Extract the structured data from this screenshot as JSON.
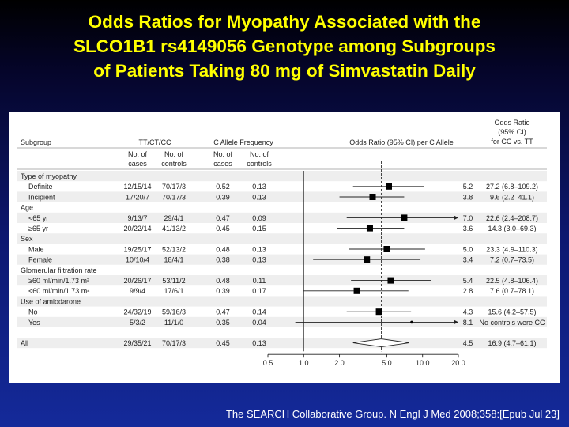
{
  "title": {
    "lines": [
      "Odds Ratios for Myopathy Associated with the",
      "SLCO1B1 rs4149056 Genotype among Subgroups",
      "of Patients Taking 80 mg of Simvastatin Daily"
    ]
  },
  "citation": "The SEARCH Collaborative Group. N Engl J Med 2008;358:[Epub Jul 23]",
  "colors": {
    "title": "#ffff00",
    "background_top": "#000000",
    "background_bottom": "#142a9a",
    "panel": "#ffffff",
    "row_band": "#eeeeee"
  },
  "table": {
    "headers": {
      "subgroup": "Subgroup",
      "ttctcc": "TT/CT/CC",
      "callele": "C Allele Frequency",
      "or_per_c": "Odds Ratio (95% CI) per C Allele",
      "or_cc_tt": [
        "Odds Ratio",
        "(95% CI)",
        "for CC vs. TT"
      ],
      "cases": [
        "No. of",
        "cases"
      ],
      "controls": [
        "No. of",
        "controls"
      ]
    }
  },
  "chart_data": {
    "type": "forest",
    "x_scale": "log",
    "xlim": [
      0.5,
      20.0
    ],
    "x_ticks": [
      0.5,
      1.0,
      2.0,
      5.0,
      10.0,
      20.0
    ],
    "x_tick_labels": [
      "0.5",
      "1.0",
      "2.0",
      "5.0",
      "10.0",
      "20.0"
    ],
    "reference_line": 1.0,
    "pooled_line": 4.5,
    "rows": [
      {
        "kind": "group",
        "label": "Type of myopathy"
      },
      {
        "kind": "item",
        "label": "Definite",
        "ttctcc_cases": "12/15/14",
        "ttctcc_controls": "70/17/3",
        "freq_cases": "0.52",
        "freq_controls": "0.13",
        "or": 5.2,
        "lo": 2.6,
        "hi": 10.3,
        "or_label": "5.2",
        "cc_tt": "27.2 (6.8–109.2)",
        "marker": "square"
      },
      {
        "kind": "item",
        "label": "Incipient",
        "ttctcc_cases": "17/20/7",
        "ttctcc_controls": "70/17/3",
        "freq_cases": "0.39",
        "freq_controls": "0.13",
        "or": 3.8,
        "lo": 2.0,
        "hi": 7.0,
        "or_label": "3.8",
        "cc_tt": "9.6 (2.2–41.1)",
        "marker": "square"
      },
      {
        "kind": "group",
        "label": "Age"
      },
      {
        "kind": "item",
        "label": "<65 yr",
        "ttctcc_cases": "9/13/7",
        "ttctcc_controls": "29/4/1",
        "freq_cases": "0.47",
        "freq_controls": "0.09",
        "or": 7.0,
        "lo": 2.3,
        "hi": 25.0,
        "or_label": "7.0",
        "cc_tt": "22.6 (2.4–208.7)",
        "marker": "square",
        "arrow": true
      },
      {
        "kind": "item",
        "label": "≥65 yr",
        "ttctcc_cases": "20/22/14",
        "ttctcc_controls": "41/13/2",
        "freq_cases": "0.45",
        "freq_controls": "0.15",
        "or": 3.6,
        "lo": 1.9,
        "hi": 7.0,
        "or_label": "3.6",
        "cc_tt": "14.3 (3.0–69.3)",
        "marker": "square"
      },
      {
        "kind": "group",
        "label": "Sex"
      },
      {
        "kind": "item",
        "label": "Male",
        "ttctcc_cases": "19/25/17",
        "ttctcc_controls": "52/13/2",
        "freq_cases": "0.48",
        "freq_controls": "0.13",
        "or": 5.0,
        "lo": 2.4,
        "hi": 10.5,
        "or_label": "5.0",
        "cc_tt": "23.3 (4.9–110.3)",
        "marker": "square"
      },
      {
        "kind": "item",
        "label": "Female",
        "ttctcc_cases": "10/10/4",
        "ttctcc_controls": "18/4/1",
        "freq_cases": "0.38",
        "freq_controls": "0.13",
        "or": 3.4,
        "lo": 1.2,
        "hi": 9.6,
        "or_label": "3.4",
        "cc_tt": "7.2 (0.7–73.5)",
        "marker": "square"
      },
      {
        "kind": "group",
        "label": "Glomerular filtration rate"
      },
      {
        "kind": "item",
        "label": "≥60 ml/min/1.73 m²",
        "ttctcc_cases": "20/26/17",
        "ttctcc_controls": "53/11/2",
        "freq_cases": "0.48",
        "freq_controls": "0.11",
        "or": 5.4,
        "lo": 2.5,
        "hi": 11.8,
        "or_label": "5.4",
        "cc_tt": "22.5 (4.8–106.4)",
        "marker": "square"
      },
      {
        "kind": "item",
        "label": "<60 ml/min/1.73 m²",
        "ttctcc_cases": "9/9/4",
        "ttctcc_controls": "17/6/1",
        "freq_cases": "0.39",
        "freq_controls": "0.17",
        "or": 2.8,
        "lo": 1.0,
        "hi": 7.6,
        "or_label": "2.8",
        "cc_tt": "7.6 (0.7–78.1)",
        "marker": "square"
      },
      {
        "kind": "group",
        "label": "Use of amiodarone"
      },
      {
        "kind": "item",
        "label": "No",
        "ttctcc_cases": "24/32/19",
        "ttctcc_controls": "59/16/3",
        "freq_cases": "0.47",
        "freq_controls": "0.14",
        "or": 4.3,
        "lo": 2.3,
        "hi": 8.0,
        "or_label": "4.3",
        "cc_tt": "15.6 (4.2–57.5)",
        "marker": "square"
      },
      {
        "kind": "item",
        "label": "Yes",
        "ttctcc_cases": "5/3/2",
        "ttctcc_controls": "11/1/0",
        "freq_cases": "0.35",
        "freq_controls": "0.04",
        "or": 8.1,
        "lo": 0.85,
        "hi": 20.0,
        "or_label": "8.1",
        "cc_tt": "No controls were CC",
        "marker": "dot",
        "arrow": true
      },
      {
        "kind": "spacer"
      },
      {
        "kind": "item",
        "label": "All",
        "ttctcc_cases": "29/35/21",
        "ttctcc_controls": "70/17/3",
        "freq_cases": "0.45",
        "freq_controls": "0.13",
        "or": 4.5,
        "lo": 2.6,
        "hi": 7.7,
        "or_label": "4.5",
        "cc_tt": "16.9 (4.7–61.1)",
        "marker": "diamond"
      }
    ]
  }
}
